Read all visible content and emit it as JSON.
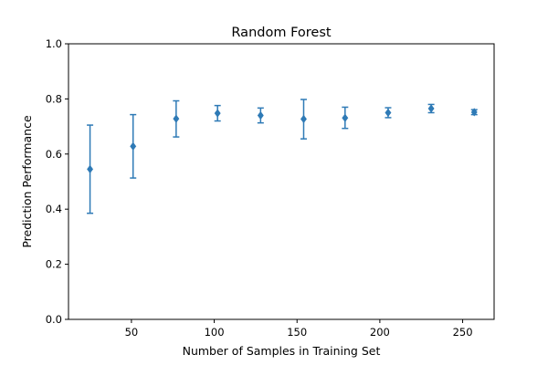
{
  "chart_data": {
    "type": "scatter",
    "title": "Random Forest",
    "xlabel": "Number of Samples in Training Set",
    "ylabel": "Prediction Performance",
    "xlim": [
      12,
      269
    ],
    "ylim": [
      0.0,
      1.0
    ],
    "xticks": [
      50,
      100,
      150,
      200,
      250
    ],
    "yticks": [
      0.0,
      0.2,
      0.4,
      0.6,
      0.8,
      1.0
    ],
    "xtick_labels": [
      "50",
      "100",
      "150",
      "200",
      "250"
    ],
    "ytick_labels": [
      "0.0",
      "0.2",
      "0.4",
      "0.6",
      "0.8",
      "1.0"
    ],
    "grid": false,
    "marker": "diamond",
    "color": "#2e7ab6",
    "series": [
      {
        "x": [
          25,
          51,
          77,
          102,
          128,
          154,
          179,
          205,
          231,
          257
        ],
        "y": [
          0.545,
          0.628,
          0.728,
          0.748,
          0.74,
          0.727,
          0.731,
          0.75,
          0.765,
          0.752
        ],
        "err_low": [
          0.385,
          0.513,
          0.662,
          0.72,
          0.713,
          0.655,
          0.693,
          0.732,
          0.75,
          0.743
        ],
        "err_high": [
          0.705,
          0.743,
          0.793,
          0.776,
          0.767,
          0.798,
          0.77,
          0.768,
          0.78,
          0.761
        ]
      }
    ]
  }
}
